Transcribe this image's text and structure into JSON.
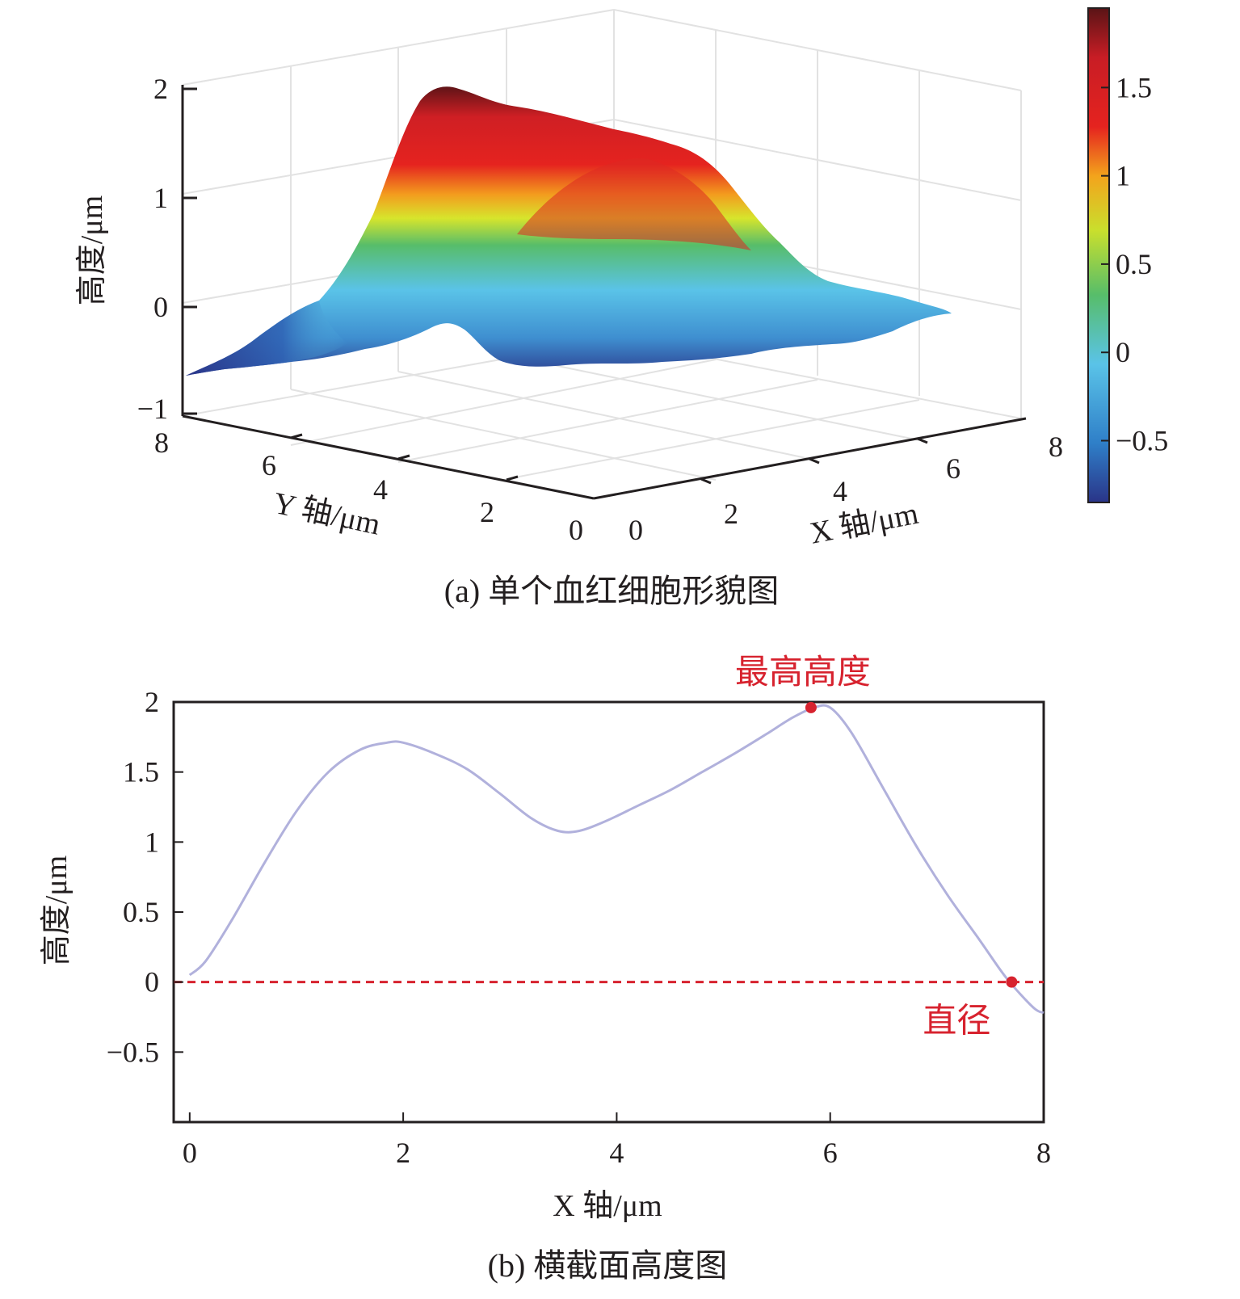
{
  "chart_data": [
    {
      "type": "surface",
      "title": "(a) 单个血红细胞形貌图",
      "xlabel": "X 轴/μm",
      "ylabel": "Y 轴/μm",
      "zlabel": "高度/μm",
      "x_ticks": [
        "0",
        "2",
        "4",
        "6",
        "8"
      ],
      "y_ticks": [
        "0",
        "2",
        "4",
        "6",
        "8"
      ],
      "z_ticks": [
        "−1",
        "0",
        "1",
        "2"
      ],
      "xlim": [
        0,
        8
      ],
      "ylim": [
        0,
        8
      ],
      "zlim": [
        -1,
        2
      ],
      "colorbar": {
        "ticks": [
          "1.5",
          "1",
          "0.5",
          "0",
          "−0.5"
        ],
        "tick_values": [
          1.5,
          1,
          0.5,
          0,
          -0.5
        ],
        "range": [
          -0.85,
          1.95
        ],
        "colormap": [
          "#2a3488",
          "#2f7fc8",
          "#5ac3e8",
          "#57bd6a",
          "#c9df2d",
          "#f3a41c",
          "#e5231f",
          "#c81d25",
          "#5a1416"
        ]
      },
      "peak_height": 1.95
    },
    {
      "type": "line",
      "title": "(b) 横截面高度图",
      "xlabel": "X 轴/μm",
      "ylabel": "高度/μm",
      "xlim": [
        -0.15,
        8
      ],
      "ylim": [
        -1,
        2
      ],
      "x_ticks": [
        "0",
        "2",
        "4",
        "6",
        "8"
      ],
      "x_tick_values": [
        0,
        2,
        4,
        6,
        8
      ],
      "y_ticks": [
        "2",
        "1.5",
        "1",
        "0.5",
        "0",
        "−0.5"
      ],
      "y_tick_values": [
        2,
        1.5,
        1,
        0.5,
        0,
        -0.5
      ],
      "series": [
        {
          "color": "#a9a9d8",
          "x": [
            0.0,
            0.15,
            0.4,
            0.7,
            1.0,
            1.3,
            1.6,
            1.85,
            2.0,
            2.3,
            2.6,
            2.9,
            3.2,
            3.45,
            3.65,
            3.9,
            4.2,
            4.5,
            4.8,
            5.1,
            5.4,
            5.65,
            5.85,
            6.0,
            6.2,
            6.5,
            6.8,
            7.1,
            7.4,
            7.65,
            7.9,
            8.0
          ],
          "y": [
            0.05,
            0.15,
            0.45,
            0.85,
            1.22,
            1.5,
            1.66,
            1.71,
            1.71,
            1.63,
            1.52,
            1.35,
            1.17,
            1.08,
            1.08,
            1.15,
            1.26,
            1.37,
            1.5,
            1.63,
            1.77,
            1.89,
            1.96,
            1.96,
            1.78,
            1.38,
            0.98,
            0.62,
            0.3,
            0.03,
            -0.18,
            -0.22
          ]
        }
      ],
      "reference_line": {
        "y": 0,
        "style": "dashed",
        "color": "#d7222e"
      },
      "markers": [
        {
          "x": 5.82,
          "y": 1.96,
          "label": "最高高度",
          "color": "#d7222e"
        },
        {
          "x": 7.7,
          "y": 0.0,
          "label": "直径",
          "color": "#d7222e"
        }
      ]
    }
  ]
}
